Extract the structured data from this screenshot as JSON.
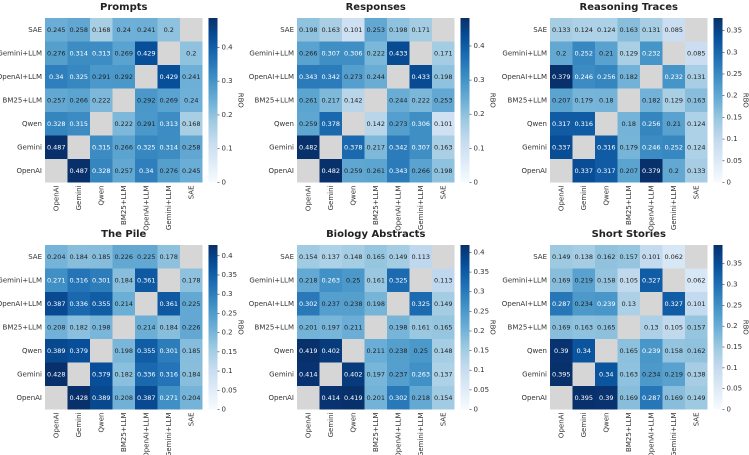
{
  "chart_data": [
    {
      "type": "heatmap",
      "title": "Prompts",
      "colorbar_label": "RBO",
      "colormap": "Blues",
      "null_color": "#d6d6d6",
      "x_categories": [
        "OpenAI",
        "Gemini",
        "Qwen",
        "BM25+LLM",
        "OpenAI+LLM",
        "Gemini+LLM",
        "SAE"
      ],
      "y_categories": [
        "SAE",
        "Gemini+LLM",
        "OpenAI+LLM",
        "BM25+LLM",
        "Qwen",
        "Gemini",
        "OpenAI"
      ],
      "values": [
        [
          0.245,
          0.258,
          0.168,
          0.24,
          0.241,
          0.2,
          null
        ],
        [
          0.276,
          0.314,
          0.313,
          0.269,
          0.429,
          null,
          0.2
        ],
        [
          0.34,
          0.325,
          0.291,
          0.292,
          null,
          0.429,
          0.241
        ],
        [
          0.257,
          0.266,
          0.222,
          null,
          0.292,
          0.269,
          0.24
        ],
        [
          0.328,
          0.315,
          null,
          0.222,
          0.291,
          0.313,
          0.168
        ],
        [
          0.487,
          null,
          0.315,
          0.266,
          0.325,
          0.314,
          0.258
        ],
        [
          null,
          0.487,
          0.328,
          0.257,
          0.34,
          0.276,
          0.245
        ]
      ],
      "zlim": [
        0,
        0.487
      ],
      "zticks": [
        0,
        0.1,
        0.2,
        0.3,
        0.4
      ]
    },
    {
      "type": "heatmap",
      "title": "Responses",
      "colorbar_label": "RBO",
      "colormap": "Blues",
      "null_color": "#d6d6d6",
      "x_categories": [
        "OpenAI",
        "Gemini",
        "Qwen",
        "BM25+LLM",
        "OpenAI+LLM",
        "Gemini+LLM",
        "SAE"
      ],
      "y_categories": [
        "SAE",
        "Gemini+LLM",
        "OpenAI+LLM",
        "BM25+LLM",
        "Qwen",
        "Gemini",
        "OpenAI"
      ],
      "values": [
        [
          0.198,
          0.163,
          0.101,
          0.253,
          0.198,
          0.171,
          null
        ],
        [
          0.266,
          0.307,
          0.306,
          0.222,
          0.433,
          null,
          0.171
        ],
        [
          0.343,
          0.342,
          0.273,
          0.244,
          null,
          0.433,
          0.198
        ],
        [
          0.261,
          0.217,
          0.142,
          null,
          0.244,
          0.222,
          0.253
        ],
        [
          0.259,
          0.378,
          null,
          0.142,
          0.273,
          0.306,
          0.101
        ],
        [
          0.482,
          null,
          0.378,
          0.217,
          0.342,
          0.307,
          0.163
        ],
        [
          null,
          0.482,
          0.259,
          0.261,
          0.343,
          0.266,
          0.198
        ]
      ],
      "zlim": [
        0,
        0.482
      ],
      "zticks": [
        0,
        0.1,
        0.2,
        0.3,
        0.4
      ]
    },
    {
      "type": "heatmap",
      "title": "Reasoning Traces",
      "colorbar_label": "RBO",
      "colormap": "Blues",
      "null_color": "#d6d6d6",
      "x_categories": [
        "OpenAI",
        "Gemini",
        "Qwen",
        "BM25+LLM",
        "OpenAI+LLM",
        "Gemini+LLM",
        "SAE"
      ],
      "y_categories": [
        "SAE",
        "Gemini+LLM",
        "OpenAI+LLM",
        "BM25+LLM",
        "Qwen",
        "Gemini",
        "OpenAI"
      ],
      "values": [
        [
          0.133,
          0.124,
          0.124,
          0.163,
          0.131,
          0.085,
          null
        ],
        [
          0.2,
          0.252,
          0.21,
          0.129,
          0.232,
          null,
          0.085
        ],
        [
          0.379,
          0.246,
          0.256,
          0.182,
          null,
          0.232,
          0.131
        ],
        [
          0.207,
          0.179,
          0.18,
          null,
          0.182,
          0.129,
          0.163
        ],
        [
          0.317,
          0.316,
          null,
          0.18,
          0.256,
          0.21,
          0.124
        ],
        [
          0.337,
          null,
          0.316,
          0.179,
          0.246,
          0.252,
          0.124
        ],
        [
          null,
          0.337,
          0.317,
          0.207,
          0.379,
          0.2,
          0.133
        ]
      ],
      "zlim": [
        0,
        0.379
      ],
      "zticks": [
        0,
        0.05,
        0.1,
        0.15,
        0.2,
        0.25,
        0.3,
        0.35
      ]
    },
    {
      "type": "heatmap",
      "title": "The Pile",
      "colorbar_label": "RBO",
      "colormap": "Blues",
      "null_color": "#d6d6d6",
      "x_categories": [
        "OpenAI",
        "Gemini",
        "Qwen",
        "BM25+LLM",
        "OpenAI+LLM",
        "Gemini+LLM",
        "SAE"
      ],
      "y_categories": [
        "SAE",
        "Gemini+LLM",
        "OpenAI+LLM",
        "BM25+LLM",
        "Qwen",
        "Gemini",
        "OpenAI"
      ],
      "values": [
        [
          0.204,
          0.184,
          0.185,
          0.226,
          0.225,
          0.178,
          null
        ],
        [
          0.271,
          0.316,
          0.301,
          0.184,
          0.361,
          null,
          0.178
        ],
        [
          0.387,
          0.336,
          0.355,
          0.214,
          null,
          0.361,
          0.225
        ],
        [
          0.208,
          0.182,
          0.198,
          null,
          0.214,
          0.184,
          0.226
        ],
        [
          0.389,
          0.379,
          null,
          0.198,
          0.355,
          0.301,
          0.185
        ],
        [
          0.428,
          null,
          0.379,
          0.182,
          0.336,
          0.316,
          0.184
        ],
        [
          null,
          0.428,
          0.389,
          0.208,
          0.387,
          0.271,
          0.204
        ]
      ],
      "zlim": [
        0,
        0.428
      ],
      "zticks": [
        0,
        0.05,
        0.1,
        0.15,
        0.2,
        0.25,
        0.3,
        0.35,
        0.4
      ]
    },
    {
      "type": "heatmap",
      "title": "Biology Abstracts",
      "colorbar_label": "RBO",
      "colormap": "Blues",
      "null_color": "#d6d6d6",
      "x_categories": [
        "OpenAI",
        "Gemini",
        "Qwen",
        "BM25+LLM",
        "OpenAI+LLM",
        "Gemini+LLM",
        "SAE"
      ],
      "y_categories": [
        "SAE",
        "Gemini+LLM",
        "OpenAI+LLM",
        "BM25+LLM",
        "Qwen",
        "Gemini",
        "OpenAI"
      ],
      "values": [
        [
          0.154,
          0.137,
          0.148,
          0.165,
          0.149,
          0.113,
          null
        ],
        [
          0.218,
          0.263,
          0.25,
          0.161,
          0.325,
          null,
          0.113
        ],
        [
          0.302,
          0.237,
          0.238,
          0.198,
          null,
          0.325,
          0.149
        ],
        [
          0.201,
          0.197,
          0.211,
          null,
          0.198,
          0.161,
          0.165
        ],
        [
          0.419,
          0.402,
          null,
          0.211,
          0.238,
          0.25,
          0.148
        ],
        [
          0.414,
          null,
          0.402,
          0.197,
          0.237,
          0.263,
          0.137
        ],
        [
          null,
          0.414,
          0.419,
          0.201,
          0.302,
          0.218,
          0.154
        ]
      ],
      "zlim": [
        0,
        0.419
      ],
      "zticks": [
        0,
        0.05,
        0.1,
        0.15,
        0.2,
        0.25,
        0.3,
        0.35,
        0.4
      ]
    },
    {
      "type": "heatmap",
      "title": "Short Stories",
      "colorbar_label": "RBO",
      "colormap": "Blues",
      "null_color": "#d6d6d6",
      "x_categories": [
        "OpenAI",
        "Gemini",
        "Qwen",
        "BM25+LLM",
        "OpenAI+LLM",
        "Gemini+LLM",
        "SAE"
      ],
      "y_categories": [
        "SAE",
        "Gemini+LLM",
        "OpenAI+LLM",
        "BM25+LLM",
        "Qwen",
        "Gemini",
        "OpenAI"
      ],
      "values": [
        [
          0.149,
          0.138,
          0.162,
          0.157,
          0.101,
          0.062,
          null
        ],
        [
          0.169,
          0.219,
          0.158,
          0.105,
          0.327,
          null,
          0.062
        ],
        [
          0.287,
          0.234,
          0.239,
          0.13,
          null,
          0.327,
          0.101
        ],
        [
          0.169,
          0.163,
          0.165,
          null,
          0.13,
          0.105,
          0.157
        ],
        [
          0.39,
          0.34,
          null,
          0.165,
          0.239,
          0.158,
          0.162
        ],
        [
          0.395,
          null,
          0.34,
          0.163,
          0.234,
          0.219,
          0.138
        ],
        [
          null,
          0.395,
          0.39,
          0.169,
          0.287,
          0.169,
          0.149
        ]
      ],
      "zlim": [
        0,
        0.395
      ],
      "zticks": [
        0,
        0.05,
        0.1,
        0.15,
        0.2,
        0.25,
        0.3,
        0.35
      ]
    }
  ]
}
